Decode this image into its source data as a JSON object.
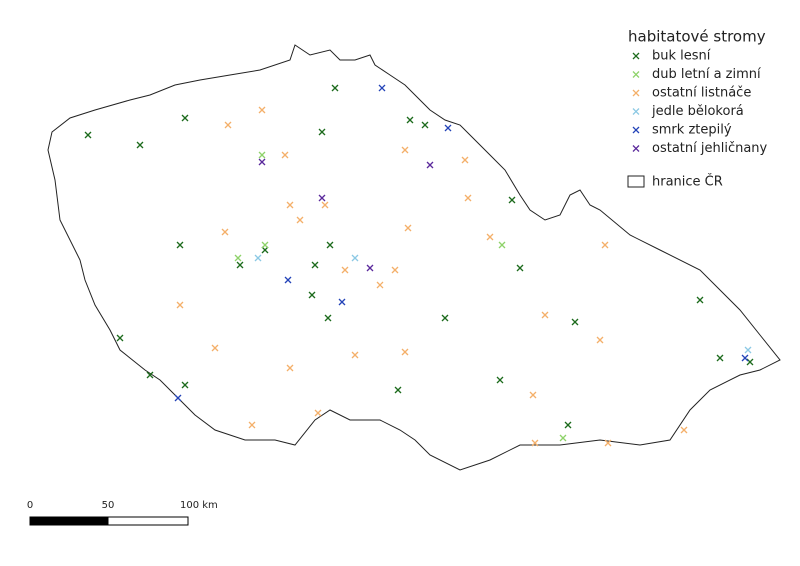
{
  "legend": {
    "title": "habitatové stromy",
    "items": [
      {
        "label": "buk lesní",
        "color": "#1d6b1d"
      },
      {
        "label": "dub letní a zimní",
        "color": "#8ed36a"
      },
      {
        "label": "ostatní listnáče",
        "color": "#f4b06a"
      },
      {
        "label": "jedle bělokorá",
        "color": "#8cc9e4"
      },
      {
        "label": "smrk ztepilý",
        "color": "#2444b8"
      },
      {
        "label": "ostatní jehličnany",
        "color": "#5b2a9c"
      }
    ],
    "boundary": "hranice ČR"
  },
  "scale_bar": {
    "labels": [
      "0",
      "50",
      "100 km"
    ]
  }
}
